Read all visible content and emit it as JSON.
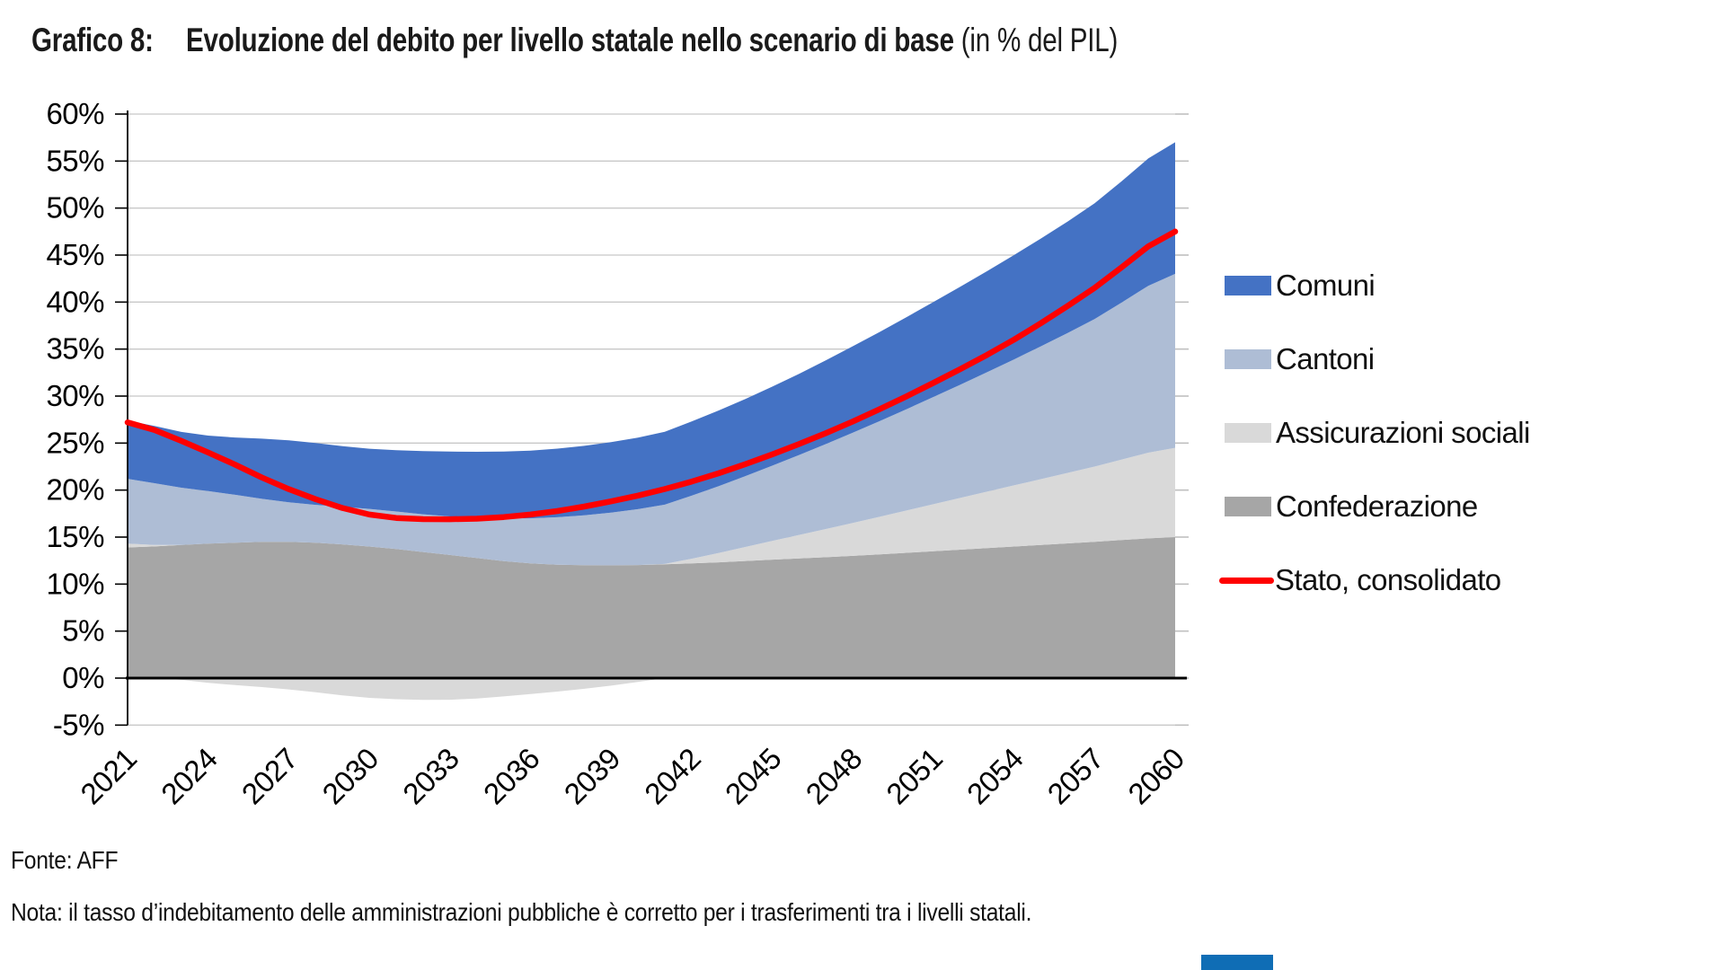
{
  "title": {
    "label": "Grafico 8:",
    "main": "Evoluzione del debito per livello statale nello scenario di base",
    "unit": " (in % del PIL)"
  },
  "legend": {
    "position": "right",
    "items": [
      {
        "id": "comuni",
        "label": "Comuni",
        "color": "#4472C4",
        "swatch": "area"
      },
      {
        "id": "cantoni",
        "label": "Cantoni",
        "color": "#AEBDD5",
        "swatch": "area"
      },
      {
        "id": "assicurazioni-sociali",
        "label": "Assicurazioni sociali",
        "color": "#D9D9D9",
        "swatch": "area"
      },
      {
        "id": "confederazione",
        "label": "Confederazione",
        "color": "#A6A6A6",
        "swatch": "area"
      },
      {
        "id": "stato-consolidato",
        "label": "Stato, consolidato",
        "color": "#FF0000",
        "swatch": "line"
      }
    ]
  },
  "footer": {
    "source": "Fonte: AFF",
    "note": "Nota: il tasso d’indebitamento delle amministrazioni pubbliche è corretto per i trasferimenti tra i livelli statali."
  },
  "page_marker_color": "#0F6DB5",
  "colors": {
    "gridline": "#C8C8C8",
    "axis": "#000000",
    "right_tick": "#BFBFBF",
    "text": "#000000"
  },
  "chart_data": {
    "type": "area",
    "stacked": true,
    "title": "Evoluzione del debito per livello statale nello scenario di base (in % del PIL)",
    "xlabel": "",
    "ylabel": "",
    "x": [
      2021,
      2024,
      2027,
      2030,
      2033,
      2036,
      2039,
      2042,
      2045,
      2048,
      2051,
      2054,
      2057,
      2060
    ],
    "x_tick_labels": [
      "2021",
      "2024",
      "2027",
      "2030",
      "2033",
      "2036",
      "2039",
      "2042",
      "2045",
      "2048",
      "2051",
      "2054",
      "2057",
      "2060"
    ],
    "ylim": [
      -5,
      60
    ],
    "ytick_step": 5,
    "ytick_suffix": "%",
    "grid": true,
    "legend_position": "right",
    "note": "values in % of GDP; stacked areas, negatives stack below zero",
    "series": [
      {
        "name": "Confederazione",
        "type": "area",
        "stack_order": 1,
        "color": "#A6A6A6",
        "values": [
          13.9,
          14.3,
          14.5,
          14.0,
          13.1,
          12.2,
          12.0,
          12.2,
          12.6,
          13.0,
          13.5,
          14.0,
          14.5,
          15.0
        ]
      },
      {
        "name": "Assicurazioni sociali",
        "type": "area",
        "stack_order": 2,
        "color": "#D9D9D9",
        "values": [
          0.4,
          -0.5,
          -1.2,
          -2.1,
          -2.3,
          -1.7,
          -0.8,
          0.5,
          2.0,
          3.5,
          5.0,
          6.5,
          8.0,
          9.5
        ]
      },
      {
        "name": "Cantoni",
        "type": "area",
        "stack_order": 3,
        "color": "#AEBDD5",
        "values": [
          6.9,
          5.6,
          4.2,
          4.0,
          4.1,
          4.8,
          5.6,
          6.7,
          8.0,
          9.6,
          11.4,
          13.4,
          15.7,
          18.5
        ]
      },
      {
        "name": "Comuni",
        "type": "area",
        "stack_order": 4,
        "color": "#4472C4",
        "values": [
          6.2,
          5.9,
          6.6,
          6.4,
          6.9,
          7.2,
          7.5,
          7.9,
          8.4,
          9.2,
          10.1,
          11.1,
          12.3,
          14.0
        ]
      },
      {
        "name": "Stato, consolidato",
        "type": "line",
        "color": "#FF0000",
        "line_width": 6.5,
        "values": [
          27.2,
          24.0,
          20.1,
          17.4,
          16.9,
          17.4,
          18.8,
          20.9,
          23.8,
          27.3,
          31.4,
          36.0,
          41.5,
          47.5
        ]
      }
    ]
  }
}
